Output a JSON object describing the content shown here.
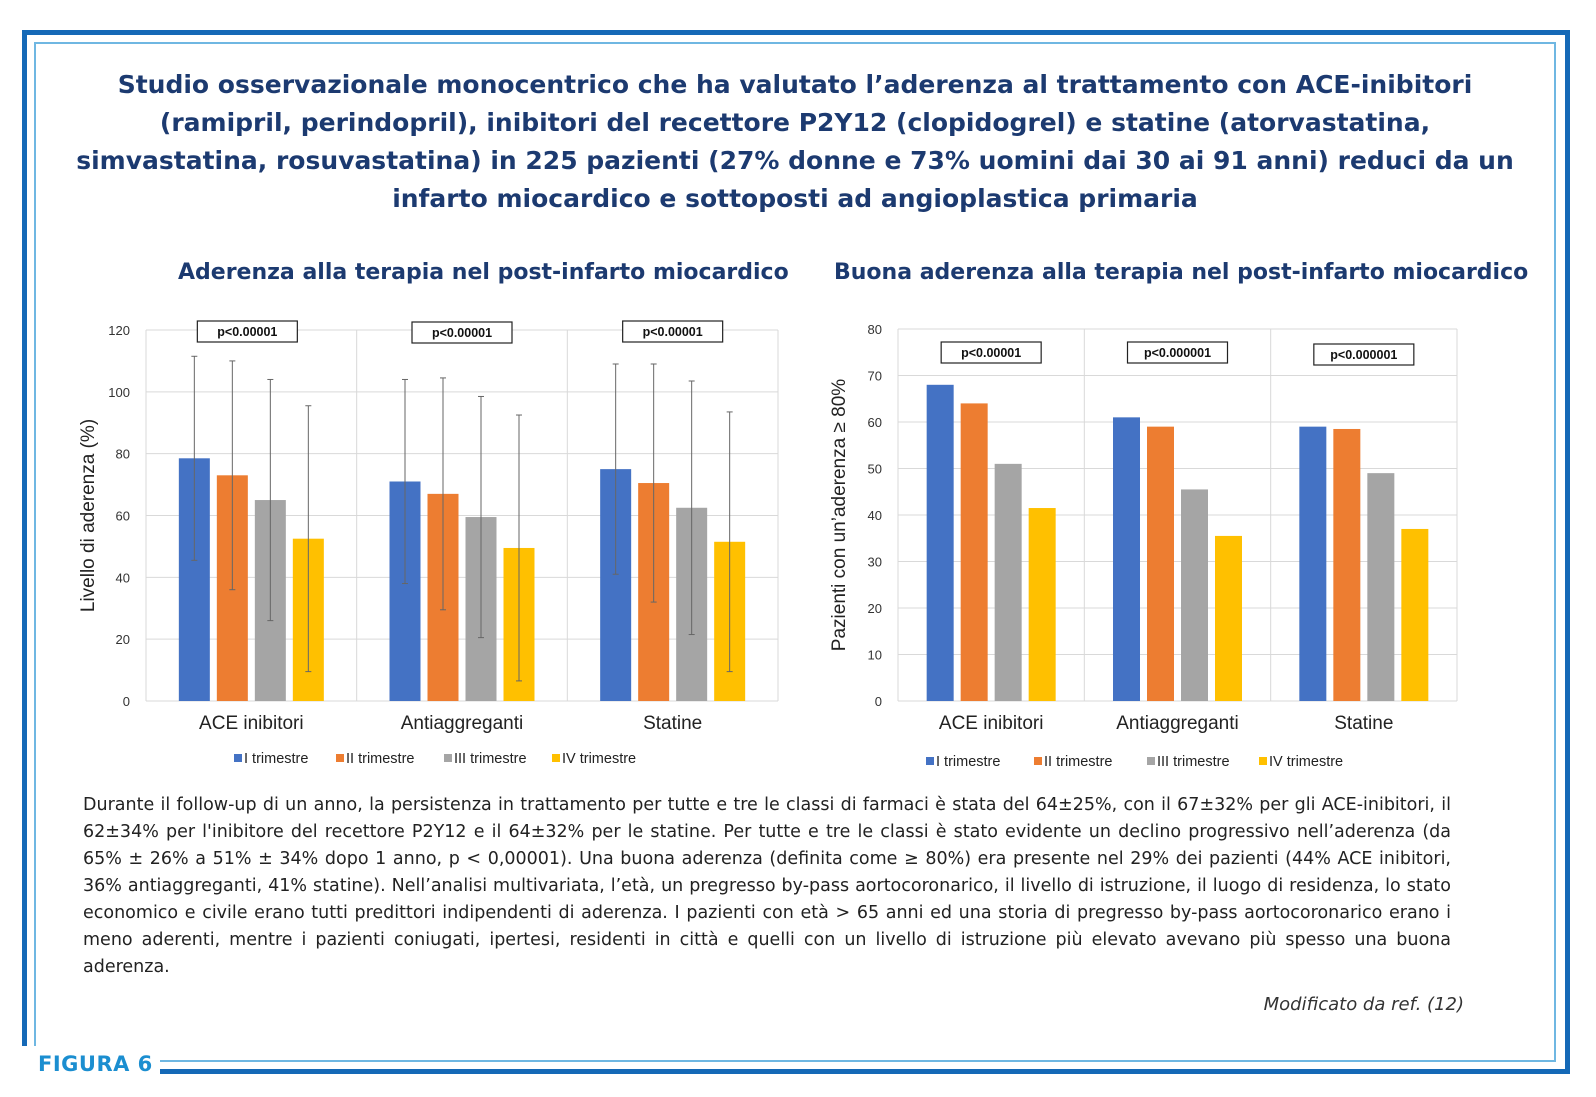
{
  "figure_label": "FIGURA 6",
  "title": "Studio osservazionale monocentrico  che ha valutato l’aderenza al trattamento con ACE-inibitori (ramipril, perindopril), inibitori del recettore P2Y12 (clopidogrel) e statine (atorvastatina, simvastatina, rosuvastatina) in 225 pazienti (27% donne e 73% uomini dai 30 ai 91 anni) reduci da un infarto miocardico e sottoposti ad angioplastica primaria",
  "body_text": "Durante il follow-up di un anno, la persistenza in trattamento per tutte e tre le classi di farmaci è stata del 64±25%, con il 67±32% per gli ACE-inibitori, il 62±34% per l'inibitore del recettore P2Y12 e il 64±32% per le statine. Per tutte e tre le classi è stato evidente un declino progressivo nell’aderenza (da 65% ± 26% a 51% ± 34% dopo 1 anno, p < 0,00001). Una buona aderenza (definita come ≥ 80%) era presente nel 29% dei pazienti (44% ACE inibitori, 36% antiaggreganti, 41% statine). Nell’analisi multivariata, l’età, un pregresso by-pass aortocoronarico, il livello di istruzione, il luogo di residenza, lo stato economico e civile erano tutti predittori indipendenti di aderenza. I pazienti con età > 65 anni ed una storia di pregresso by-pass aortocoronarico erano i meno aderenti, mentre i pazienti coniugati, ipertesi, residenti in città e quelli con un livello di istruzione più elevato avevano più spesso una buona aderenza.",
  "source": "Modificato da ref. (12)",
  "colors": {
    "series": [
      "#4472c4",
      "#ed7d31",
      "#a5a5a5",
      "#ffc000"
    ],
    "frame": "#1569b7",
    "title": "#1c3a70"
  },
  "chart_data": [
    {
      "type": "bar",
      "title": "Aderenza alla terapia nel post-infarto miocardico",
      "xlabel": "",
      "ylabel": "Livello di aderenza (%)",
      "ylim": [
        0,
        120
      ],
      "yticks": [
        0,
        20,
        40,
        60,
        80,
        100,
        120
      ],
      "grid": true,
      "legend": "bottom",
      "categories": [
        "ACE inibitori",
        "Antiaggreganti",
        "Statine"
      ],
      "series": [
        {
          "name": "I trimestre",
          "values": [
            78.5,
            71,
            75
          ],
          "error": [
            33,
            33,
            34
          ]
        },
        {
          "name": "II trimestre",
          "values": [
            73,
            67,
            70.5
          ],
          "error": [
            37,
            37.5,
            38.5
          ]
        },
        {
          "name": "III trimestre",
          "values": [
            65,
            59.5,
            62.5
          ],
          "error": [
            39,
            39,
            41
          ]
        },
        {
          "name": "IV trimestre",
          "values": [
            52.5,
            49.5,
            51.5
          ],
          "error": [
            43,
            43,
            42
          ]
        }
      ],
      "annotations": [
        "p<0.00001",
        "p<0.00001",
        "p<0.00001"
      ]
    },
    {
      "type": "bar",
      "title": "Buona aderenza alla terapia nel post-infarto miocardico",
      "xlabel": "",
      "ylabel": "Pazienti con un’aderenza ≥ 80%",
      "ylim": [
        0,
        80
      ],
      "yticks": [
        0,
        10,
        20,
        30,
        40,
        50,
        60,
        70,
        80
      ],
      "grid": true,
      "legend": "bottom",
      "categories": [
        "ACE inibitori",
        "Antiaggreganti",
        "Statine"
      ],
      "series": [
        {
          "name": "I trimestre",
          "values": [
            68,
            61,
            59
          ]
        },
        {
          "name": "II trimestre",
          "values": [
            64,
            59,
            58.5
          ]
        },
        {
          "name": "III trimestre",
          "values": [
            51,
            45.5,
            49
          ]
        },
        {
          "name": "IV trimestre",
          "values": [
            41.5,
            35.5,
            37
          ]
        }
      ],
      "annotations": [
        "p<0.00001",
        "p<0.000001",
        "p<0.000001"
      ]
    }
  ]
}
